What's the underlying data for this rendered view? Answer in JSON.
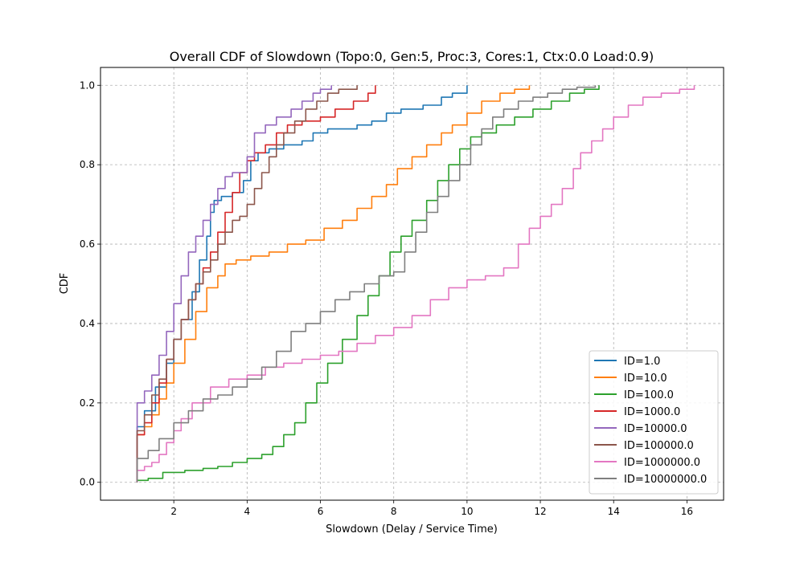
{
  "chart_data": {
    "type": "line",
    "title": "Overall CDF of Slowdown (Topo:0, Gen:5, Proc:3, Cores:1, Ctx:0.0 Load:0.9)",
    "xlabel": "Slowdown (Delay / Service Time)",
    "ylabel": "CDF",
    "xlim": [
      0.0,
      17.0
    ],
    "ylim": [
      -0.045,
      1.045
    ],
    "xticks": [
      2,
      4,
      6,
      8,
      10,
      12,
      14,
      16
    ],
    "yticks": [
      0.0,
      0.2,
      0.4,
      0.6,
      0.8,
      1.0
    ],
    "xtick_labels": [
      "2",
      "4",
      "6",
      "8",
      "10",
      "12",
      "14",
      "16"
    ],
    "ytick_labels": [
      "0.0",
      "0.2",
      "0.4",
      "0.6",
      "0.8",
      "1.0"
    ],
    "grid": true,
    "legend_position": "lower-right",
    "series": [
      {
        "name": "ID=1.0",
        "color": "#1f77b4",
        "x": [
          1.0,
          1.0,
          1.2,
          1.5,
          1.8,
          2.0,
          2.2,
          2.5,
          2.7,
          2.9,
          3.0,
          3.1,
          3.3,
          3.6,
          3.9,
          4.1,
          4.3,
          4.6,
          5.0,
          5.5,
          5.8,
          6.2,
          7.0,
          7.4,
          7.8,
          8.2,
          8.8,
          9.3,
          9.6,
          10.0
        ],
        "y": [
          0.0,
          0.14,
          0.18,
          0.24,
          0.3,
          0.36,
          0.41,
          0.48,
          0.56,
          0.62,
          0.68,
          0.71,
          0.72,
          0.73,
          0.76,
          0.81,
          0.83,
          0.84,
          0.85,
          0.86,
          0.88,
          0.89,
          0.9,
          0.91,
          0.93,
          0.94,
          0.95,
          0.97,
          0.98,
          1.0
        ]
      },
      {
        "name": "ID=10.0",
        "color": "#ff7f0e",
        "x": [
          1.0,
          1.0,
          1.2,
          1.4,
          1.6,
          1.8,
          2.0,
          2.3,
          2.6,
          2.9,
          3.2,
          3.4,
          3.7,
          4.1,
          4.6,
          5.1,
          5.6,
          6.1,
          6.6,
          7.0,
          7.4,
          7.8,
          8.1,
          8.5,
          8.9,
          9.3,
          9.6,
          10.0,
          10.4,
          10.9,
          11.3,
          11.7
        ],
        "y": [
          0.0,
          0.12,
          0.14,
          0.17,
          0.21,
          0.25,
          0.3,
          0.36,
          0.43,
          0.49,
          0.52,
          0.55,
          0.56,
          0.57,
          0.58,
          0.6,
          0.61,
          0.64,
          0.66,
          0.69,
          0.72,
          0.75,
          0.79,
          0.82,
          0.85,
          0.88,
          0.9,
          0.93,
          0.96,
          0.98,
          0.99,
          1.0
        ]
      },
      {
        "name": "ID=100.0",
        "color": "#2ca02c",
        "x": [
          1.0,
          1.0,
          1.3,
          1.7,
          2.3,
          2.8,
          3.2,
          3.6,
          4.0,
          4.4,
          4.7,
          5.0,
          5.3,
          5.6,
          5.9,
          6.2,
          6.6,
          7.0,
          7.3,
          7.6,
          7.9,
          8.2,
          8.5,
          8.9,
          9.2,
          9.5,
          9.8,
          10.1,
          10.4,
          10.8,
          11.3,
          11.8,
          12.3,
          12.8,
          13.2,
          13.6
        ],
        "y": [
          0.0,
          0.005,
          0.01,
          0.025,
          0.03,
          0.035,
          0.04,
          0.05,
          0.06,
          0.07,
          0.09,
          0.12,
          0.15,
          0.2,
          0.25,
          0.3,
          0.36,
          0.42,
          0.47,
          0.52,
          0.58,
          0.62,
          0.66,
          0.71,
          0.76,
          0.8,
          0.84,
          0.87,
          0.88,
          0.9,
          0.92,
          0.94,
          0.96,
          0.98,
          0.99,
          1.0
        ]
      },
      {
        "name": "ID=1000.0",
        "color": "#d62728",
        "x": [
          1.0,
          1.0,
          1.2,
          1.4,
          1.6,
          1.8,
          2.0,
          2.2,
          2.4,
          2.6,
          2.8,
          3.0,
          3.2,
          3.4,
          3.6,
          3.8,
          4.0,
          4.2,
          4.5,
          4.8,
          5.1,
          5.5,
          6.0,
          6.4,
          6.9,
          7.3,
          7.5
        ],
        "y": [
          0.0,
          0.12,
          0.15,
          0.2,
          0.25,
          0.31,
          0.36,
          0.41,
          0.46,
          0.5,
          0.54,
          0.58,
          0.63,
          0.68,
          0.73,
          0.78,
          0.81,
          0.83,
          0.85,
          0.88,
          0.9,
          0.91,
          0.92,
          0.94,
          0.96,
          0.98,
          1.0
        ]
      },
      {
        "name": "ID=10000.0",
        "color": "#9467bd",
        "x": [
          1.0,
          1.0,
          1.2,
          1.4,
          1.6,
          1.8,
          2.0,
          2.2,
          2.4,
          2.6,
          2.8,
          3.0,
          3.2,
          3.4,
          3.6,
          3.8,
          4.0,
          4.2,
          4.5,
          4.8,
          5.2,
          5.5,
          5.8,
          6.0,
          6.3
        ],
        "y": [
          0.0,
          0.2,
          0.23,
          0.27,
          0.32,
          0.38,
          0.45,
          0.52,
          0.58,
          0.62,
          0.66,
          0.7,
          0.74,
          0.77,
          0.78,
          0.78,
          0.82,
          0.88,
          0.9,
          0.92,
          0.94,
          0.96,
          0.98,
          0.99,
          1.0
        ]
      },
      {
        "name": "ID=100000.0",
        "color": "#8c564b",
        "x": [
          1.0,
          1.0,
          1.2,
          1.4,
          1.6,
          1.8,
          2.0,
          2.2,
          2.4,
          2.6,
          2.8,
          3.0,
          3.2,
          3.4,
          3.6,
          3.8,
          4.0,
          4.2,
          4.4,
          4.6,
          4.8,
          5.0,
          5.3,
          5.6,
          5.9,
          6.2,
          6.5,
          7.0
        ],
        "y": [
          0.0,
          0.13,
          0.17,
          0.22,
          0.26,
          0.31,
          0.36,
          0.41,
          0.46,
          0.5,
          0.53,
          0.56,
          0.6,
          0.63,
          0.66,
          0.67,
          0.7,
          0.74,
          0.78,
          0.82,
          0.85,
          0.88,
          0.91,
          0.94,
          0.96,
          0.98,
          0.99,
          1.0
        ]
      },
      {
        "name": "ID=1000000.0",
        "color": "#e377c2",
        "x": [
          1.0,
          1.0,
          1.2,
          1.4,
          1.6,
          1.8,
          2.0,
          2.2,
          2.5,
          3.0,
          3.5,
          4.0,
          4.5,
          5.0,
          5.5,
          6.0,
          6.5,
          7.0,
          7.5,
          8.0,
          8.5,
          9.0,
          9.5,
          10.0,
          10.5,
          11.0,
          11.4,
          11.7,
          12.0,
          12.3,
          12.6,
          12.9,
          13.1,
          13.4,
          13.7,
          14.0,
          14.4,
          14.8,
          15.3,
          15.8,
          16.2
        ],
        "y": [
          0.0,
          0.03,
          0.04,
          0.05,
          0.07,
          0.1,
          0.13,
          0.16,
          0.2,
          0.24,
          0.26,
          0.27,
          0.29,
          0.3,
          0.31,
          0.32,
          0.33,
          0.35,
          0.37,
          0.39,
          0.42,
          0.46,
          0.49,
          0.51,
          0.52,
          0.54,
          0.6,
          0.64,
          0.67,
          0.7,
          0.74,
          0.79,
          0.83,
          0.86,
          0.89,
          0.92,
          0.95,
          0.97,
          0.98,
          0.99,
          1.0
        ]
      },
      {
        "name": "ID=10000000.0",
        "color": "#7f7f7f",
        "x": [
          1.0,
          1.0,
          1.3,
          1.6,
          2.0,
          2.4,
          2.8,
          3.2,
          3.6,
          4.0,
          4.4,
          4.8,
          5.2,
          5.6,
          6.0,
          6.4,
          6.8,
          7.2,
          7.6,
          8.0,
          8.3,
          8.6,
          8.9,
          9.2,
          9.5,
          9.8,
          10.1,
          10.4,
          10.7,
          11.0,
          11.4,
          11.8,
          12.2,
          12.6,
          13.0,
          13.5
        ],
        "y": [
          0.0,
          0.06,
          0.08,
          0.11,
          0.15,
          0.18,
          0.21,
          0.22,
          0.24,
          0.26,
          0.29,
          0.33,
          0.38,
          0.4,
          0.43,
          0.46,
          0.48,
          0.5,
          0.52,
          0.53,
          0.58,
          0.63,
          0.68,
          0.72,
          0.76,
          0.8,
          0.85,
          0.89,
          0.92,
          0.94,
          0.96,
          0.97,
          0.98,
          0.99,
          0.995,
          1.0
        ]
      }
    ]
  }
}
